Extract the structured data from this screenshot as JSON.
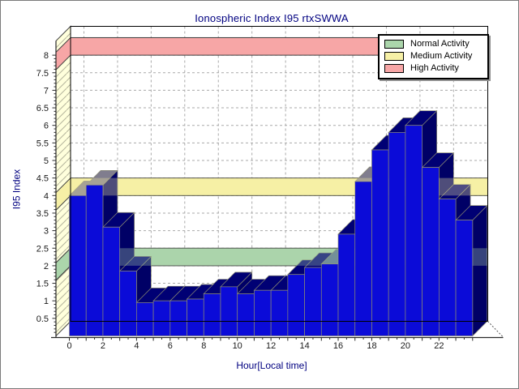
{
  "chart_data": {
    "type": "bar",
    "style": "pseudo-3d",
    "title": "Ionospheric Index I95 rtxSWWA",
    "xlabel": "Hour[Local time]",
    "ylabel": "I95 Index",
    "x": [
      0,
      1,
      2,
      3,
      4,
      5,
      6,
      7,
      8,
      9,
      10,
      11,
      12,
      13,
      14,
      15,
      16,
      17,
      18,
      19,
      20,
      21,
      22,
      23
    ],
    "values": [
      4.0,
      4.3,
      3.1,
      1.85,
      0.95,
      1.0,
      1.0,
      1.05,
      1.2,
      1.4,
      1.2,
      1.3,
      1.3,
      1.75,
      1.95,
      2.05,
      2.9,
      4.4,
      5.3,
      5.8,
      6.0,
      4.8,
      3.9,
      3.3
    ],
    "ylim": [
      0,
      8.5
    ],
    "y_tick_step": 0.5,
    "y_tick_labels": [
      "0.5",
      "1",
      "1.5",
      "2",
      "2.5",
      "3",
      "3.5",
      "4",
      "4.5",
      "5",
      "5.5",
      "6",
      "6.5",
      "7",
      "7.5",
      "8"
    ],
    "x_tick_labels": [
      "0",
      "2",
      "4",
      "6",
      "8",
      "10",
      "12",
      "14",
      "16",
      "18",
      "20",
      "22"
    ],
    "x_label_hours": [
      0,
      2,
      4,
      6,
      8,
      10,
      12,
      14,
      16,
      18,
      20,
      22
    ],
    "grid": "dashed",
    "legend_position": "top-right",
    "bands": [
      {
        "label": "Normal Activity",
        "from": 2.0,
        "to": 2.5,
        "color": "#abd5ab"
      },
      {
        "label": "Medium Activity",
        "from": 4.0,
        "to": 4.5,
        "color": "#f6f0a6"
      },
      {
        "label": "High Activity",
        "from": 8.0,
        "to": 8.5,
        "color": "#f7a6a6"
      }
    ],
    "colors": {
      "bar_front": "#0b0bd8",
      "bar_side": "#000066",
      "bar_top": "#000074",
      "bar_edge": "#8a8a72",
      "wall": "#ffffdc",
      "wall_hatch": "#b5b59c",
      "grid": "#a9a9a9",
      "plot_border": "#000000",
      "axis_line": "#2a2a2a",
      "tick_text": "#1a1a1a",
      "title_text": "#000080",
      "band_border": "#3c3c3c"
    }
  },
  "legend": {
    "items": [
      {
        "label": "Normal Activity",
        "color": "#abd5ab"
      },
      {
        "label": "Medium Activity",
        "color": "#f6f0a6"
      },
      {
        "label": "High Activity",
        "color": "#f7a6a6"
      }
    ]
  }
}
